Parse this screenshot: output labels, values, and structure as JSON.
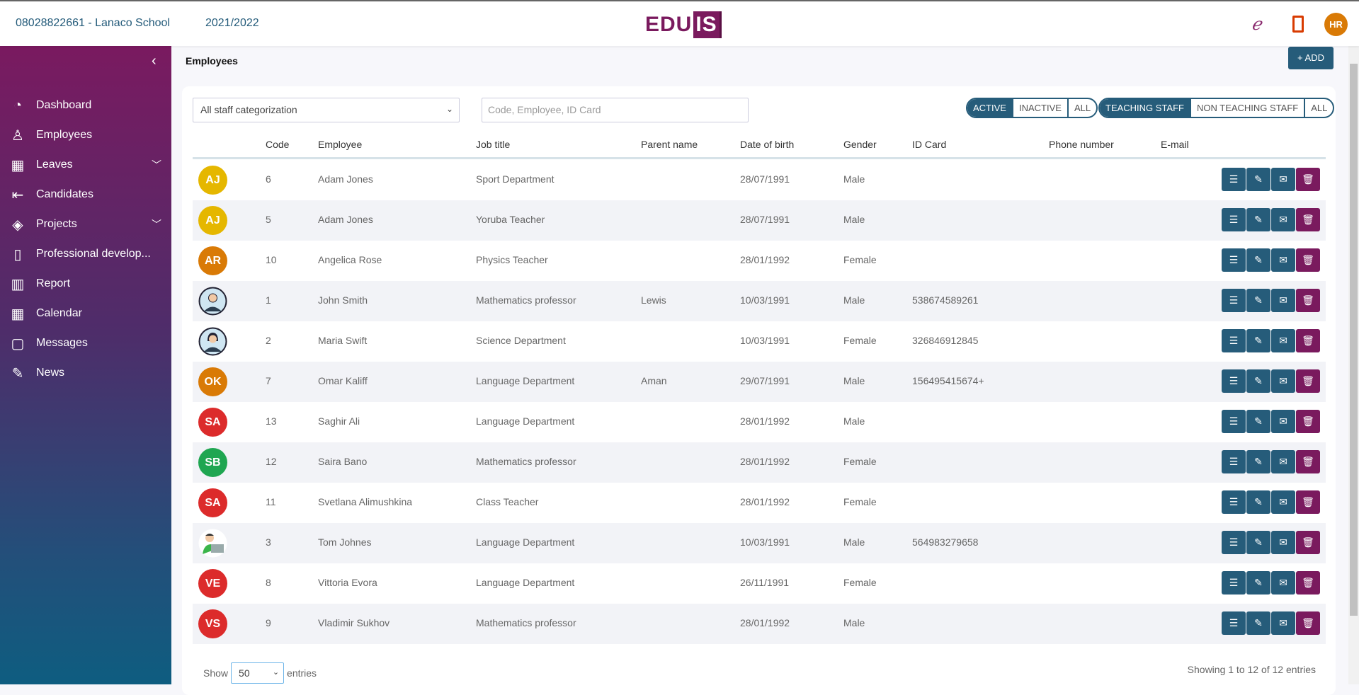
{
  "header": {
    "school": "08028822661 - Lanaco School",
    "year": "2021/2022",
    "logo": "EDUIS",
    "user_initials": "HR",
    "icons": [
      "edu-app-icon",
      "office-icon"
    ]
  },
  "sidebar": {
    "items": [
      {
        "label": "Dashboard",
        "icon": "gauge-icon"
      },
      {
        "label": "Employees",
        "icon": "person-icon"
      },
      {
        "label": "Leaves",
        "icon": "calendar-x-icon",
        "expandable": true
      },
      {
        "label": "Candidates",
        "icon": "login-icon"
      },
      {
        "label": "Projects",
        "icon": "ticket-icon",
        "expandable": true
      },
      {
        "label": "Professional develop...",
        "icon": "book-icon"
      },
      {
        "label": "Report",
        "icon": "bar-chart-icon"
      },
      {
        "label": "Calendar",
        "icon": "calendar-icon"
      },
      {
        "label": "Messages",
        "icon": "chat-icon"
      },
      {
        "label": "News",
        "icon": "pin-icon"
      }
    ]
  },
  "page": {
    "title": "Employees",
    "add_label": "+ ADD"
  },
  "filters": {
    "categorization": "All staff categorization",
    "search_placeholder": "Code, Employee, ID Card",
    "status": [
      "ACTIVE",
      "INACTIVE",
      "ALL"
    ],
    "status_selected": "ACTIVE",
    "staff": [
      "TEACHING STAFF",
      "NON TEACHING STAFF",
      "ALL"
    ],
    "staff_selected": "TEACHING STAFF"
  },
  "table": {
    "columns": [
      "Code",
      "Employee",
      "Job title",
      "Parent name",
      "Date of birth",
      "Gender",
      "ID Card",
      "Phone number",
      "E-mail"
    ],
    "rows": [
      {
        "initials": "AJ",
        "color": "#e5b700",
        "code": "6",
        "name": "Adam Jones",
        "job": "Sport Department",
        "parent": "",
        "dob": "28/07/1991",
        "gender": "Male",
        "id": ""
      },
      {
        "initials": "AJ",
        "color": "#e5b700",
        "code": "5",
        "name": "Adam Jones",
        "job": "Yoruba Teacher",
        "parent": "",
        "dob": "28/07/1991",
        "gender": "Male",
        "id": ""
      },
      {
        "initials": "AR",
        "color": "#d97a06",
        "code": "10",
        "name": "Angelica Rose",
        "job": "Physics Teacher",
        "parent": "",
        "dob": "28/01/1992",
        "gender": "Female",
        "id": ""
      },
      {
        "initials": "",
        "photo": "male",
        "code": "1",
        "name": "John Smith",
        "job": "Mathematics professor",
        "parent": "Lewis",
        "dob": "10/03/1991",
        "gender": "Male",
        "id": "538674589261"
      },
      {
        "initials": "",
        "photo": "female",
        "code": "2",
        "name": "Maria Swift",
        "job": "Science Department",
        "parent": "",
        "dob": "10/03/1991",
        "gender": "Female",
        "id": "326846912845"
      },
      {
        "initials": "OK",
        "color": "#d97a06",
        "code": "7",
        "name": "Omar Kaliff",
        "job": "Language Department",
        "parent": "Aman",
        "dob": "29/07/1991",
        "gender": "Male",
        "id": "156495415674+"
      },
      {
        "initials": "SA",
        "color": "#dc2b2b",
        "code": "13",
        "name": "Saghir Ali",
        "job": "Language Department",
        "parent": "",
        "dob": "28/01/1992",
        "gender": "Male",
        "id": ""
      },
      {
        "initials": "SB",
        "color": "#1fa651",
        "code": "12",
        "name": "Saira Bano",
        "job": "Mathematics professor",
        "parent": "",
        "dob": "28/01/1992",
        "gender": "Female",
        "id": ""
      },
      {
        "initials": "SA",
        "color": "#dc2b2b",
        "code": "11",
        "name": "Svetlana Alimushkina",
        "job": "Class Teacher",
        "parent": "",
        "dob": "28/01/1992",
        "gender": "Female",
        "id": ""
      },
      {
        "initials": "",
        "photo": "laptop",
        "code": "3",
        "name": "Tom Johnes",
        "job": "Language Department",
        "parent": "",
        "dob": "10/03/1991",
        "gender": "Male",
        "id": "564983279658"
      },
      {
        "initials": "VE",
        "color": "#dc2b2b",
        "code": "8",
        "name": "Vittoria Evora",
        "job": "Language Department",
        "parent": "",
        "dob": "26/11/1991",
        "gender": "Female",
        "id": ""
      },
      {
        "initials": "VS",
        "color": "#dc2b2b",
        "code": "9",
        "name": "Vladimir Sukhov",
        "job": "Mathematics professor",
        "parent": "",
        "dob": "28/01/1992",
        "gender": "Male",
        "id": ""
      }
    ]
  },
  "footer": {
    "show": "Show",
    "page_size": "50",
    "entries": "entries",
    "info": "Showing 1 to 12 of 12 entries"
  },
  "colors": {
    "primary": "#265c7a",
    "danger": "#7a1a5e"
  }
}
